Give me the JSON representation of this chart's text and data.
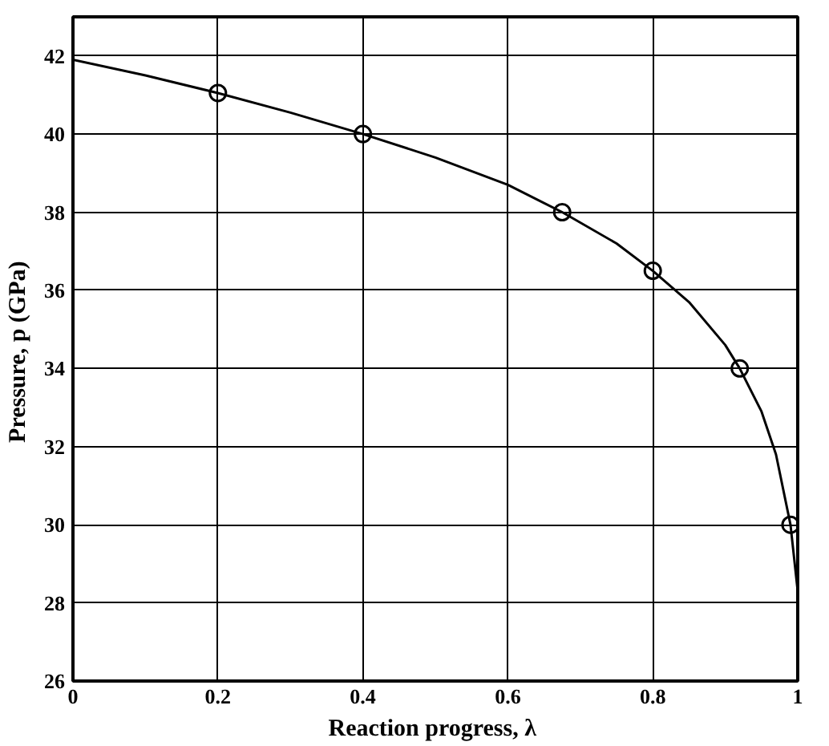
{
  "chart_data": {
    "type": "line",
    "xlabel": "Reaction progress,  λ",
    "ylabel": "Pressure,  p (GPa)",
    "xlim": [
      0,
      1
    ],
    "ylim": [
      26,
      43
    ],
    "xticks": [
      0,
      0.2,
      0.4,
      0.6,
      0.8,
      1
    ],
    "yticks": [
      26,
      28,
      30,
      32,
      34,
      36,
      38,
      40,
      42
    ],
    "grid": true,
    "series": [
      {
        "color": "#000000",
        "marker": "none",
        "x": [
          0,
          0.1,
          0.2,
          0.3,
          0.4,
          0.5,
          0.6,
          0.675,
          0.75,
          0.8,
          0.85,
          0.9,
          0.92,
          0.95,
          0.97,
          0.99,
          1.0
        ],
        "values": [
          41.9,
          41.5,
          41.05,
          40.55,
          40.0,
          39.4,
          38.7,
          38.0,
          37.2,
          36.5,
          35.7,
          34.6,
          34.0,
          32.9,
          31.8,
          30.0,
          28.3
        ]
      },
      {
        "type": "scatter",
        "color": "#000000",
        "marker": "circle",
        "x": [
          0.2,
          0.4,
          0.675,
          0.8,
          0.92,
          0.99
        ],
        "values": [
          41.05,
          40.0,
          38.0,
          36.5,
          34.0,
          30.0
        ]
      }
    ]
  }
}
